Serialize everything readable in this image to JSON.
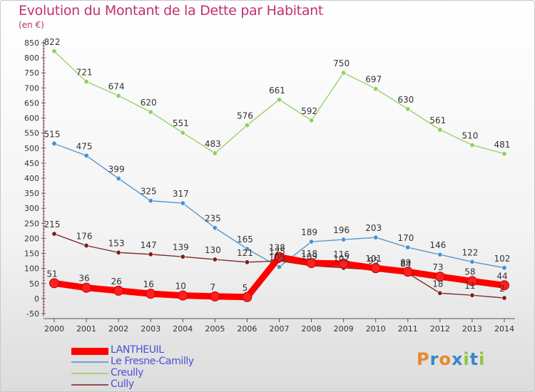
{
  "header": {
    "title": "Evolution du Montant de la Dette par Habitant",
    "unit": "(en €)"
  },
  "brand": {
    "letters": [
      "P",
      "r",
      "o",
      "x",
      "i",
      "t",
      "i"
    ],
    "colors": [
      "#e8872a",
      "#3a86c8",
      "#e8872a",
      "#3a86c8",
      "#8cc63f",
      "#3a86c8",
      "#8cc63f"
    ]
  },
  "chart_data": {
    "type": "line",
    "title": "Evolution du Montant de la Dette par Habitant",
    "ylabel": "(en €)",
    "xlabel": "",
    "ylim": [
      -50,
      850
    ],
    "yticks": [
      -50,
      0,
      50,
      100,
      150,
      200,
      250,
      300,
      350,
      400,
      450,
      500,
      550,
      600,
      650,
      700,
      750,
      800,
      850
    ],
    "grid": false,
    "legend_position": "bottom-left",
    "categories": [
      "2000",
      "2001",
      "2002",
      "2003",
      "2004",
      "2005",
      "2006",
      "2007",
      "2008",
      "2009",
      "2010",
      "2011",
      "2012",
      "2013",
      "2014"
    ],
    "series": [
      {
        "name": "LANTHEUIL",
        "color": "#ff0000",
        "values": [
          51,
          36,
          26,
          16,
          10,
          7,
          5,
          138,
          118,
          116,
          101,
          89,
          73,
          58,
          44
        ],
        "labels": [
          "51",
          "36",
          "26",
          "16",
          "10",
          "7",
          "5",
          "138",
          "118",
          "116",
          "101",
          "89",
          "73",
          "58",
          "44"
        ]
      },
      {
        "name": "Le Fresne-Camilly",
        "color": "#4a90d0",
        "values": [
          515,
          475,
          399,
          325,
          317,
          235,
          165,
          105,
          189,
          196,
          203,
          170,
          146,
          122,
          102
        ],
        "labels": [
          "515",
          "475",
          "399",
          "325",
          "317",
          "235",
          "165",
          "105",
          "189",
          "196",
          "203",
          "170",
          "146",
          "122",
          "102"
        ]
      },
      {
        "name": "Creully",
        "color": "#8fd060",
        "values": [
          822,
          721,
          674,
          620,
          551,
          483,
          576,
          661,
          592,
          750,
          697,
          630,
          561,
          510,
          481
        ],
        "labels": [
          "822",
          "721",
          "674",
          "620",
          "551",
          "483",
          "576",
          "661",
          "592",
          "750",
          "697",
          "630",
          "561",
          "510",
          "481"
        ]
      },
      {
        "name": "Cully",
        "color": "#7a2020",
        "values": [
          215,
          176,
          153,
          147,
          139,
          130,
          121,
          125,
          109,
          102,
          95,
          84,
          18,
          11,
          2
        ],
        "labels": [
          "215",
          "176",
          "153",
          "147",
          "139",
          "130",
          "121",
          "125",
          "109",
          "102",
          "95",
          "84",
          "18",
          "11",
          "2"
        ]
      }
    ]
  }
}
